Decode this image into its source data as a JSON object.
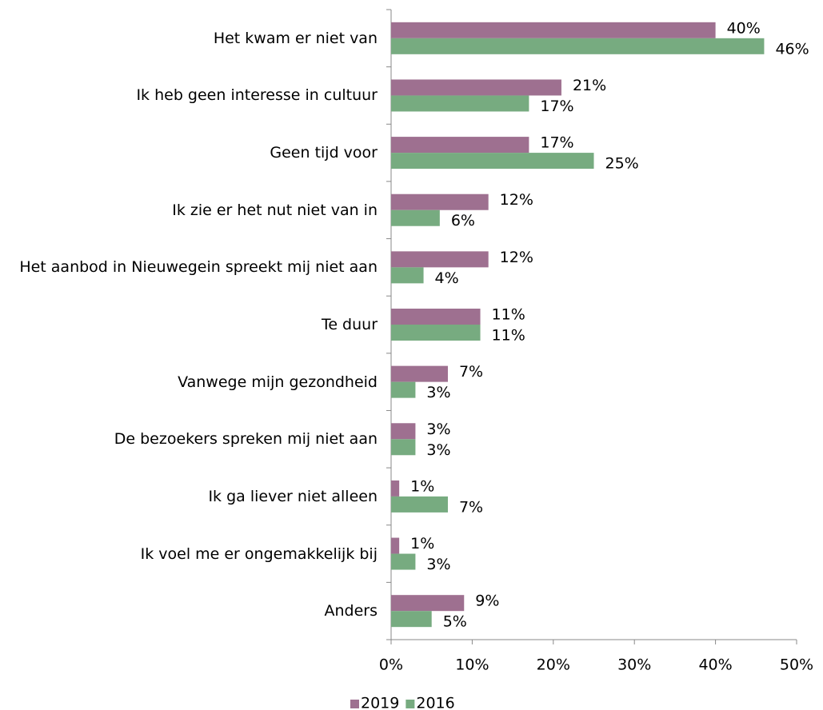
{
  "chart_data": {
    "type": "bar",
    "orientation": "horizontal",
    "categories": [
      "Het kwam er niet van",
      "Ik heb geen interesse in cultuur",
      "Geen tijd voor",
      "Ik zie er het nut niet van in",
      "Het aanbod in Nieuwegein spreekt mij niet aan",
      "Te duur",
      "Vanwege mijn gezondheid",
      "De bezoekers spreken mij niet aan",
      "Ik ga liever niet alleen",
      "Ik voel me er ongemakkelijk bij",
      "Anders"
    ],
    "series": [
      {
        "name": "2019",
        "color": "#9e7090",
        "values": [
          40,
          21,
          17,
          12,
          12,
          11,
          7,
          3,
          1,
          1,
          9
        ],
        "value_labels": [
          "40%",
          "21%",
          "17%",
          "12%",
          "12%",
          "11%",
          "7%",
          "3%",
          "1%",
          "1%",
          "9%"
        ]
      },
      {
        "name": "2016",
        "color": "#77ab80",
        "values": [
          46,
          17,
          25,
          6,
          4,
          11,
          3,
          3,
          7,
          3,
          5
        ],
        "value_labels": [
          "46%",
          "17%",
          "25%",
          "6%",
          "4%",
          "11%",
          "3%",
          "3%",
          "7%",
          "3%",
          "5%"
        ]
      }
    ],
    "xlim": [
      0,
      50
    ],
    "xticks": [
      {
        "value": 0,
        "label": "0%"
      },
      {
        "value": 10,
        "label": "10%"
      },
      {
        "value": 20,
        "label": "20%"
      },
      {
        "value": 30,
        "label": "30%"
      },
      {
        "value": 40,
        "label": "40%"
      },
      {
        "value": 50,
        "label": "50%"
      }
    ],
    "legend": "bottom"
  }
}
